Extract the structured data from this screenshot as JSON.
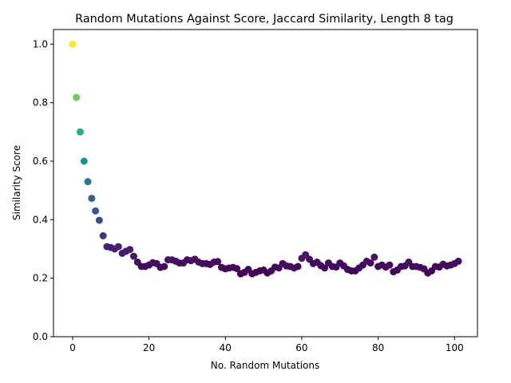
{
  "chart_data": {
    "type": "scatter",
    "title": "Random Mutations Against Score, Jaccard Similarity, Length 8 tag",
    "xlabel": "No. Random Mutations",
    "ylabel": "Similarity Score",
    "xlim": [
      -5,
      106
    ],
    "ylim": [
      0,
      1.05
    ],
    "xticks": [
      0,
      20,
      40,
      60,
      80,
      100
    ],
    "yticks": [
      0.0,
      0.2,
      0.4,
      0.6,
      0.8,
      1.0
    ],
    "xtick_labels": [
      "0",
      "20",
      "40",
      "60",
      "80",
      "100"
    ],
    "ytick_labels": [
      "0.0",
      "0.2",
      "0.4",
      "0.6",
      "0.8",
      "1.0"
    ],
    "grid": false,
    "colormap": "viridis",
    "points": {
      "x": [
        0,
        1,
        2,
        3,
        4,
        5,
        6,
        7,
        8,
        9,
        10,
        11,
        12,
        13,
        14,
        15,
        16,
        17,
        18,
        19,
        20,
        21,
        22,
        23,
        24,
        25,
        26,
        27,
        28,
        29,
        30,
        31,
        32,
        33,
        34,
        35,
        36,
        37,
        38,
        39,
        40,
        41,
        42,
        43,
        44,
        45,
        46,
        47,
        48,
        49,
        50,
        51,
        52,
        53,
        54,
        55,
        56,
        57,
        58,
        59,
        60,
        61,
        62,
        63,
        64,
        65,
        66,
        67,
        68,
        69,
        70,
        71,
        72,
        73,
        74,
        75,
        76,
        77,
        78,
        79,
        80,
        81,
        82,
        83,
        84,
        85,
        86,
        87,
        88,
        89,
        90,
        91,
        92,
        93,
        94,
        95,
        96,
        97,
        98,
        99,
        100,
        101
      ],
      "y": [
        1.0,
        0.818,
        0.7,
        0.6,
        0.53,
        0.473,
        0.43,
        0.398,
        0.345,
        0.308,
        0.305,
        0.3,
        0.308,
        0.285,
        0.292,
        0.298,
        0.275,
        0.255,
        0.24,
        0.24,
        0.245,
        0.253,
        0.25,
        0.237,
        0.24,
        0.263,
        0.263,
        0.258,
        0.252,
        0.252,
        0.263,
        0.26,
        0.265,
        0.255,
        0.25,
        0.25,
        0.247,
        0.255,
        0.257,
        0.237,
        0.232,
        0.235,
        0.237,
        0.233,
        0.215,
        0.22,
        0.23,
        0.215,
        0.22,
        0.225,
        0.228,
        0.218,
        0.225,
        0.238,
        0.235,
        0.25,
        0.242,
        0.24,
        0.235,
        0.24,
        0.268,
        0.28,
        0.265,
        0.25,
        0.255,
        0.243,
        0.235,
        0.252,
        0.24,
        0.238,
        0.252,
        0.242,
        0.23,
        0.225,
        0.225,
        0.235,
        0.245,
        0.258,
        0.252,
        0.272,
        0.24,
        0.245,
        0.238,
        0.245,
        0.222,
        0.228,
        0.24,
        0.242,
        0.255,
        0.24,
        0.24,
        0.237,
        0.232,
        0.218,
        0.225,
        0.24,
        0.238,
        0.248,
        0.242,
        0.245,
        0.25,
        0.258
      ]
    }
  }
}
